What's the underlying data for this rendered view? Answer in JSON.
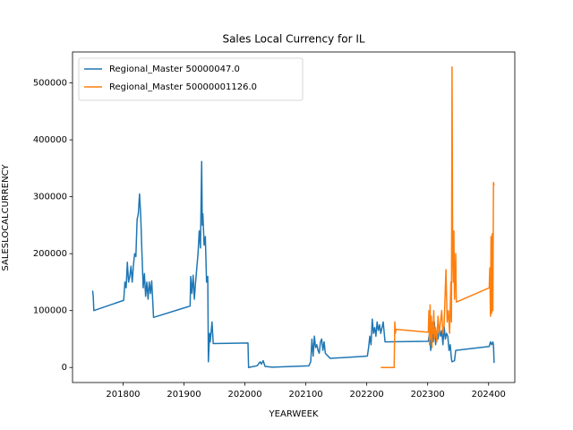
{
  "chart_data": {
    "type": "line",
    "title": "Sales Local Currency for IL",
    "x_label": "YEARWEEK",
    "y_label": "SALESLOCALCURRENCY",
    "xlim": [
      201717,
      202443
    ],
    "xticks": [
      201800,
      201900,
      202000,
      202100,
      202200,
      202300,
      202400
    ],
    "ylim": [
      -26400,
      554400
    ],
    "yticks": [
      0,
      100000,
      200000,
      300000,
      400000,
      500000
    ],
    "grid": false,
    "legend": "upper left",
    "series": [
      {
        "name": "Regional_Master 50000047.0",
        "color": "#1f77b4",
        "x": [
          201750,
          201751,
          201752,
          201801,
          201803,
          201805,
          201807,
          201809,
          201811,
          201813,
          201815,
          201817,
          201819,
          201821,
          201823,
          201825,
          201827,
          201829,
          201831,
          201833,
          201835,
          201837,
          201839,
          201841,
          201843,
          201845,
          201847,
          201850,
          201910,
          201911,
          201913,
          201915,
          201917,
          201919,
          201921,
          201923,
          201925,
          201927,
          201929,
          201930,
          201931,
          201933,
          201935,
          201937,
          201939,
          201940,
          201942,
          201943,
          201946,
          201948,
          202005,
          202006,
          202010,
          202020,
          202025,
          202027,
          202030,
          202033,
          202045,
          202105,
          202108,
          202110,
          202112,
          202114,
          202116,
          202118,
          202120,
          202122,
          202124,
          202126,
          202128,
          202130,
          202132,
          202140,
          202201,
          202203,
          202205,
          202207,
          202209,
          202211,
          202213,
          202215,
          202217,
          202219,
          202221,
          202223,
          202225,
          202227,
          202230,
          202301,
          202303,
          202305,
          202307,
          202309,
          202311,
          202313,
          202315,
          202317,
          202319,
          202321,
          202323,
          202325,
          202327,
          202329,
          202331,
          202333,
          202335,
          202337,
          202339,
          202340,
          202344,
          202346,
          202401,
          202403,
          202405,
          202407,
          202408,
          202409
        ],
        "values": [
          135000,
          125000,
          100000,
          118000,
          150000,
          140000,
          185000,
          150000,
          160000,
          178000,
          150000,
          180000,
          200000,
          195000,
          260000,
          270000,
          305000,
          265000,
          200000,
          140000,
          165000,
          125000,
          150000,
          120000,
          150000,
          130000,
          152000,
          88000,
          108000,
          160000,
          130000,
          162000,
          120000,
          150000,
          175000,
          200000,
          240000,
          210000,
          362000,
          250000,
          270000,
          215000,
          230000,
          150000,
          160000,
          10000,
          60000,
          45000,
          80000,
          42000,
          43000,
          0,
          1000,
          3000,
          10000,
          6000,
          12000,
          2000,
          500,
          3000,
          10000,
          50000,
          20000,
          55000,
          35000,
          40000,
          30000,
          25000,
          45000,
          50000,
          30000,
          45000,
          25000,
          16000,
          20000,
          35000,
          55000,
          40000,
          85000,
          60000,
          70000,
          55000,
          80000,
          65000,
          75000,
          60000,
          70000,
          80000,
          45000,
          46000,
          60000,
          30000,
          75000,
          45000,
          80000,
          40000,
          60000,
          50000,
          70000,
          55000,
          65000,
          40000,
          72000,
          50000,
          60000,
          55000,
          30000,
          40000,
          15000,
          10000,
          12000,
          30000,
          37000,
          45000,
          40000,
          45000,
          40000,
          8000
        ]
      },
      {
        "name": "Regional_Master 50000001126.0",
        "color": "#ff7f0e",
        "x": [
          202223,
          202245,
          202246,
          202247,
          202248,
          202301,
          202302,
          202303,
          202304,
          202305,
          202306,
          202307,
          202308,
          202309,
          202310,
          202311,
          202313,
          202315,
          202317,
          202319,
          202321,
          202323,
          202325,
          202327,
          202330,
          202332,
          202334,
          202336,
          202338,
          202339,
          202340,
          202341,
          202342,
          202343,
          202344,
          202346,
          202347,
          202401,
          202402,
          202403,
          202404,
          202405,
          202406,
          202407,
          202408,
          202409
        ],
        "values": [
          0,
          0,
          80000,
          60000,
          67000,
          62000,
          100000,
          40000,
          110000,
          50000,
          90000,
          35000,
          80000,
          60000,
          100000,
          50000,
          70000,
          45000,
          90000,
          60000,
          80000,
          100000,
          60000,
          75000,
          172000,
          80000,
          100000,
          60000,
          150000,
          80000,
          528000,
          200000,
          150000,
          240000,
          120000,
          200000,
          115000,
          140000,
          175000,
          90000,
          230000,
          95000,
          235000,
          100000,
          325000,
          320000
        ]
      }
    ]
  }
}
